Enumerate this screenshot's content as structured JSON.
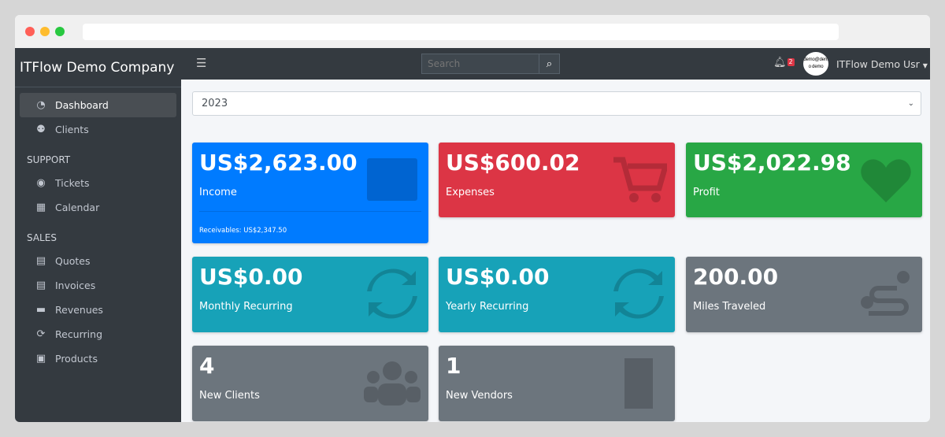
{
  "app": {
    "company": "ITFlow Demo Company"
  },
  "sidebar": {
    "items": [
      {
        "label": "Dashboard",
        "icon": "tachometer-icon"
      },
      {
        "label": "Clients",
        "icon": "users-icon"
      }
    ],
    "support_header": "SUPPORT",
    "support": [
      {
        "label": "Tickets",
        "icon": "life-ring-icon"
      },
      {
        "label": "Calendar",
        "icon": "calendar-icon"
      }
    ],
    "sales_header": "SALES",
    "sales": [
      {
        "label": "Quotes",
        "icon": "file-icon"
      },
      {
        "label": "Invoices",
        "icon": "invoice-icon"
      },
      {
        "label": "Revenues",
        "icon": "credit-card-icon"
      },
      {
        "label": "Recurring",
        "icon": "sync-icon"
      },
      {
        "label": "Products",
        "icon": "box-icon"
      }
    ]
  },
  "topbar": {
    "search_placeholder": "Search",
    "notifications": "2",
    "avatar_text": "demo@demo demo",
    "user": "ITFlow Demo Usr"
  },
  "filter": {
    "year": "2023"
  },
  "cards": [
    {
      "value": "US$2,623.00",
      "label": "Income",
      "footer": "Receivables: US$2,347.50",
      "color": "#007bff"
    },
    {
      "value": "US$600.02",
      "label": "Expenses",
      "color": "#dc3545"
    },
    {
      "value": "US$2,022.98",
      "label": "Profit",
      "color": "#28a745"
    },
    {
      "value": "US$0.00",
      "label": "Monthly Recurring",
      "color": "#17a2b8"
    },
    {
      "value": "US$0.00",
      "label": "Yearly Recurring",
      "color": "#17a2b8"
    },
    {
      "value": "200.00",
      "label": "Miles Traveled",
      "color": "#6c757d"
    },
    {
      "value": "4",
      "label": "New Clients",
      "color": "#6c757d"
    },
    {
      "value": "1",
      "label": "New Vendors",
      "color": "#6c757d"
    }
  ]
}
